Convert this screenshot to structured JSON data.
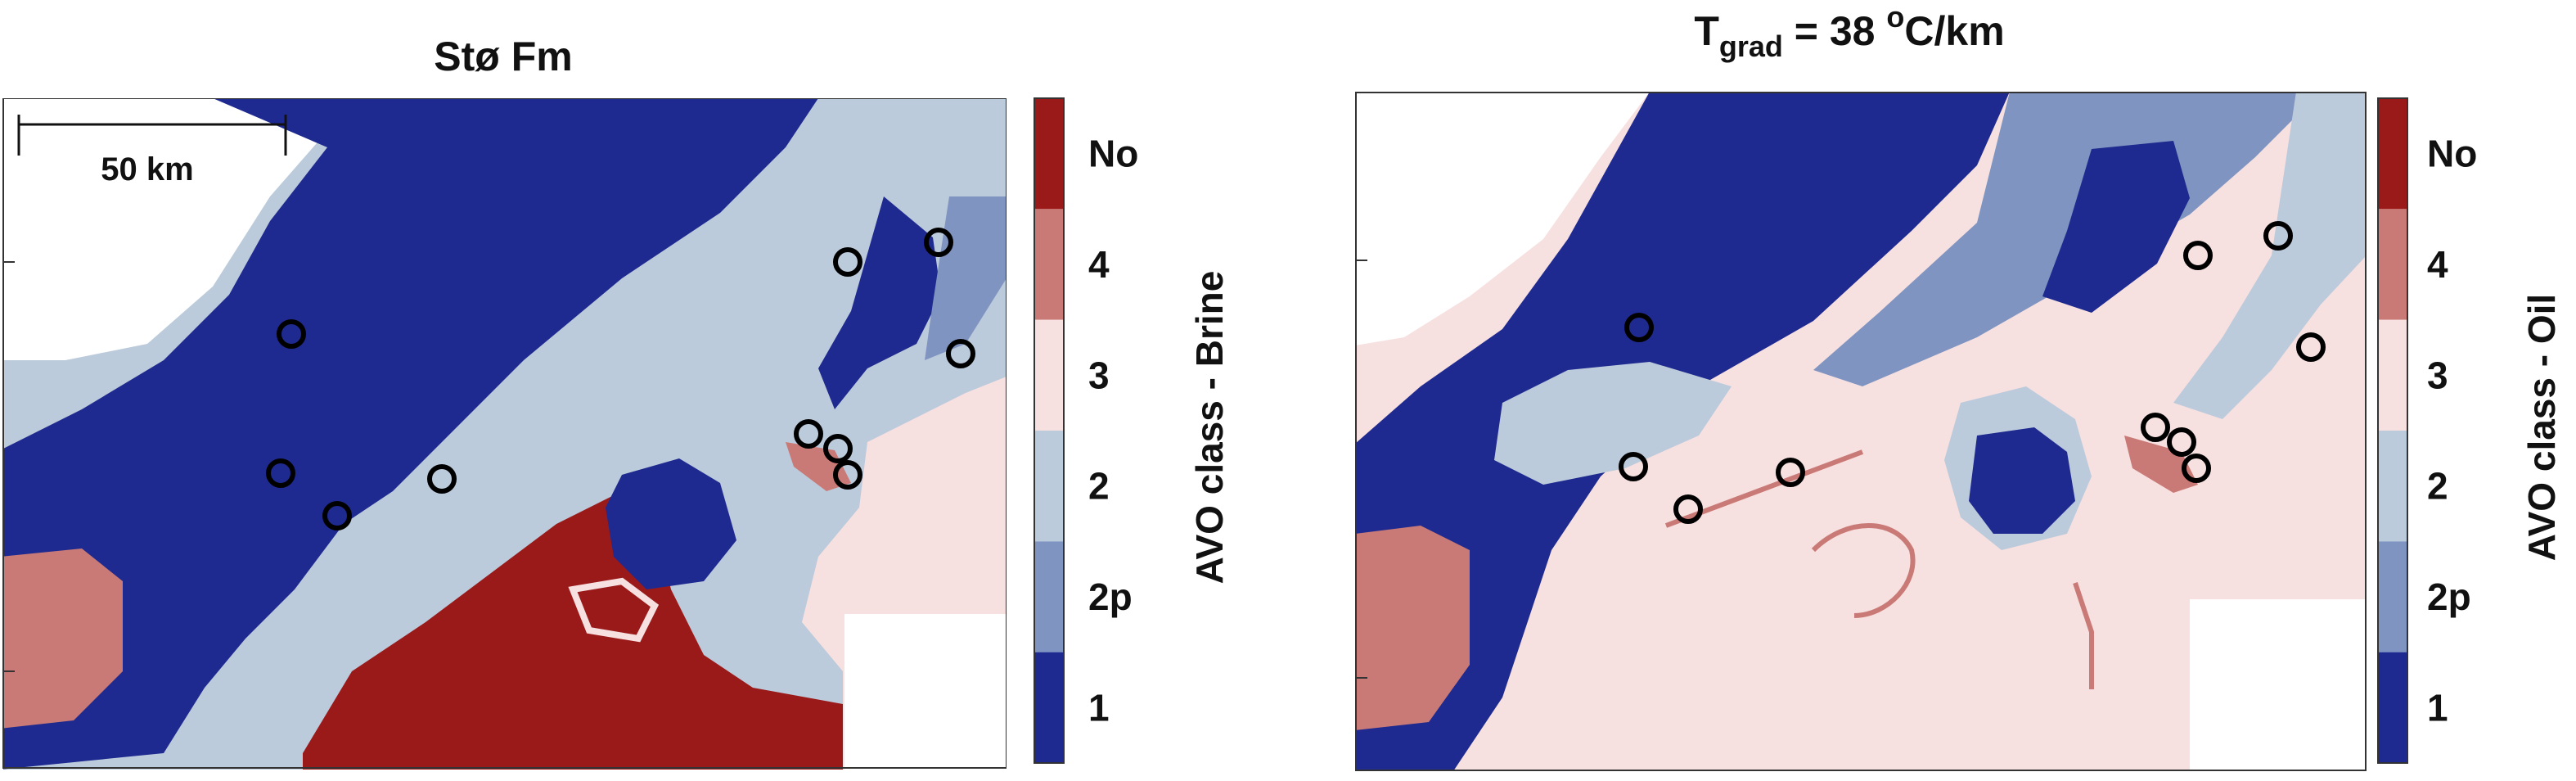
{
  "panels": [
    {
      "id": "left",
      "title": "Stø Fm",
      "colorbar_label": "AVO class - Brine",
      "scale_bar_label": "50 km"
    },
    {
      "id": "right",
      "title_main": "T",
      "title_sub": "grad",
      "title_mid": " = 38 ",
      "title_sup": "o",
      "title_end": "C/km",
      "colorbar_label": "AVO class - Oil"
    }
  ],
  "colorbar": {
    "classes": [
      {
        "label": "No",
        "color": "#9a1a1a"
      },
      {
        "label": "4",
        "color": "#c97a76"
      },
      {
        "label": "3",
        "color": "#f7e0e0"
      },
      {
        "label": "2",
        "color": "#bccbdb"
      },
      {
        "label": "2p",
        "color": "#7f94c0"
      },
      {
        "label": "1",
        "color": "#1e2a8f"
      }
    ]
  },
  "colors": {
    "class1": "#1e2a8f",
    "class2p": "#7f94c0",
    "class2": "#bccbdb",
    "class3": "#f7e0e0",
    "class4": "#c97a76",
    "classNo": "#9a1a1a",
    "well_marker": "#000000"
  }
}
